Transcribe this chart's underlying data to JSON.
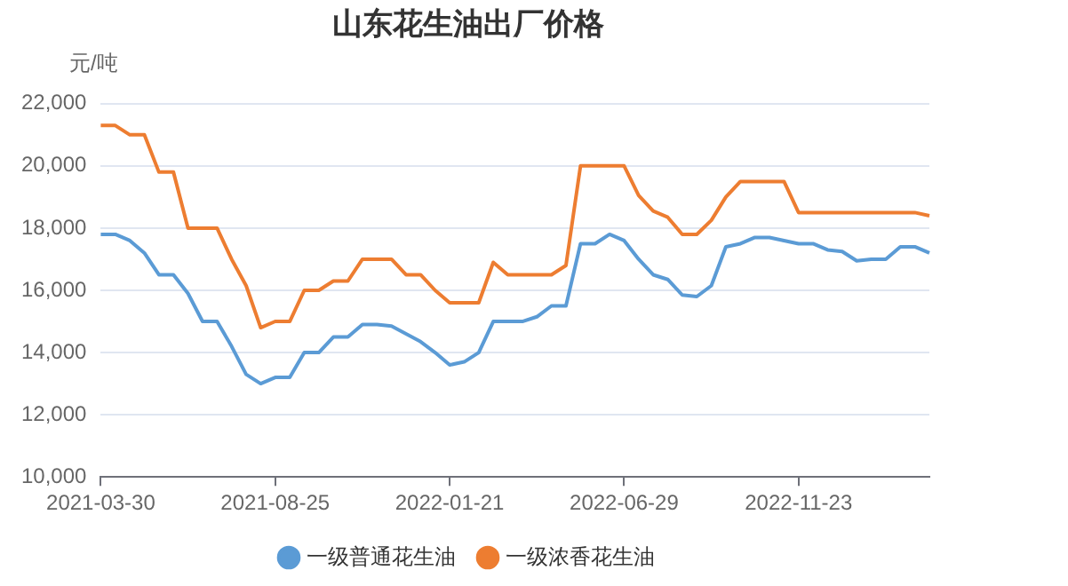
{
  "chart_data": {
    "type": "line",
    "title": "山东花生油出厂价格",
    "ylabel": "元/吨",
    "categories": [
      "2021-03-30",
      null,
      null,
      null,
      null,
      null,
      null,
      null,
      null,
      null,
      null,
      null,
      "2021-08-25",
      null,
      null,
      null,
      null,
      null,
      null,
      null,
      null,
      null,
      null,
      null,
      "2022-01-21",
      null,
      null,
      null,
      null,
      null,
      null,
      null,
      null,
      null,
      null,
      null,
      "2022-06-29",
      null,
      null,
      null,
      null,
      null,
      null,
      null,
      null,
      null,
      null,
      null,
      "2022-11-23",
      null,
      null,
      null,
      null,
      null,
      null,
      null,
      null,
      null
    ],
    "series": [
      {
        "name": "一级普通花生油",
        "color": "#5b9bd5",
        "values": [
          17800,
          17800,
          17600,
          17200,
          16500,
          16500,
          15900,
          15000,
          15000,
          14200,
          13300,
          13000,
          13200,
          13200,
          14000,
          14000,
          14500,
          14500,
          14900,
          14900,
          14850,
          14600,
          14350,
          14000,
          13600,
          13700,
          14000,
          15000,
          15000,
          15000,
          15150,
          15500,
          15500,
          17500,
          17500,
          17800,
          17600,
          17000,
          16500,
          16350,
          15850,
          15800,
          16150,
          17400,
          17500,
          17700,
          17700,
          17600,
          17500,
          17500,
          17300,
          17250,
          16950,
          17000,
          17000,
          17400,
          17400,
          17200
        ]
      },
      {
        "name": "一级浓香花生油",
        "color": "#ed7d31",
        "values": [
          21300,
          21300,
          21000,
          21000,
          19800,
          19800,
          18000,
          18000,
          18000,
          17000,
          16150,
          14800,
          15000,
          15000,
          16000,
          16000,
          16300,
          16300,
          17000,
          17000,
          17000,
          16500,
          16500,
          16000,
          15600,
          15600,
          15600,
          16900,
          16500,
          16500,
          16500,
          16500,
          16800,
          20000,
          20000,
          20000,
          20000,
          19050,
          18550,
          18350,
          17800,
          17800,
          18250,
          19000,
          19500,
          19500,
          19500,
          19500,
          18500,
          18500,
          18500,
          18500,
          18500,
          18500,
          18500,
          18500,
          18500,
          18400
        ]
      }
    ],
    "ylim": [
      10000,
      22000
    ],
    "yticks": [
      {
        "value": 10000,
        "label": "10,000"
      },
      {
        "value": 12000,
        "label": "12,000"
      },
      {
        "value": 14000,
        "label": "14,000"
      },
      {
        "value": 16000,
        "label": "16,000"
      },
      {
        "value": 18000,
        "label": "18,000"
      },
      {
        "value": 20000,
        "label": "20,000"
      },
      {
        "value": 22000,
        "label": "22,000"
      }
    ],
    "grid": "y",
    "legend": "bottom",
    "marker": "none",
    "line_style": "solid"
  }
}
